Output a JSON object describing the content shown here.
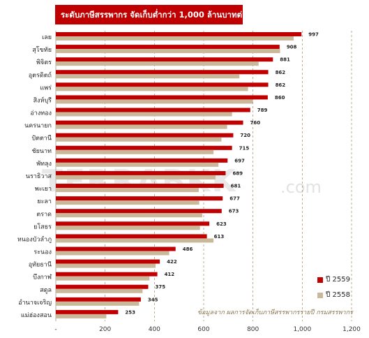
{
  "title": "ระดับภาษีสรรพากร จัดเก็บต่ำกว่า 1,000 ล้านบาทต่อปี",
  "watermark": "TERRABKK",
  "watermark_suffix": ".com",
  "source": "ข้อมูลจาก ผลการจัดเก็บภาษีสรรพากรรายปี  กรมสรรพากร",
  "colors": {
    "series_2559": "#c00000",
    "series_2558": "#c9b99a",
    "grid": "#a08a5a"
  },
  "chart_data": {
    "type": "bar",
    "orientation": "horizontal",
    "categories": [
      "เลย",
      "สุโขทัย",
      "พิจิตร",
      "อุตรดิตถ์",
      "แพร่",
      "สิงห์บุรี",
      "อ่างทอง",
      "นครนายก",
      "ปัตตานี",
      "ชัยนาท",
      "พัทลุง",
      "นราธิวาส",
      "พะเยา",
      "ยะลา",
      "ตราด",
      "ยโสธร",
      "หนองบัวลำภู",
      "ระนอง",
      "อุทัยธานี",
      "บึงกาฬ",
      "สตูล",
      "อำนาจเจริญ",
      "แม่ฮ่องสอน"
    ],
    "series": [
      {
        "name": "ปี 2559",
        "values": [
          997,
          908,
          881,
          862,
          862,
          860,
          789,
          760,
          720,
          715,
          697,
          689,
          681,
          677,
          673,
          623,
          613,
          486,
          422,
          412,
          375,
          345,
          253
        ]
      },
      {
        "name": "ปี 2558",
        "values": [
          965,
          910,
          823,
          745,
          780,
          800,
          715,
          695,
          672,
          640,
          660,
          648,
          580,
          582,
          594,
          585,
          640,
          460,
          405,
          380,
          352,
          338,
          205
        ]
      }
    ],
    "data_labels": [
      "997",
      "908",
      "881",
      "862",
      "862",
      "860",
      "789",
      "760",
      "720",
      "715",
      "697",
      "689",
      "681",
      "677",
      "673",
      "623",
      "613",
      "486",
      "422",
      "412",
      "375",
      "345",
      "253"
    ],
    "xlim": [
      0,
      1200
    ],
    "xticks": [
      "-",
      "200",
      "400",
      "600",
      "800",
      "1,000",
      "1,200"
    ],
    "xtick_values": [
      0,
      200,
      400,
      600,
      800,
      1000,
      1200
    ],
    "grid": true,
    "legend_position": "right"
  }
}
